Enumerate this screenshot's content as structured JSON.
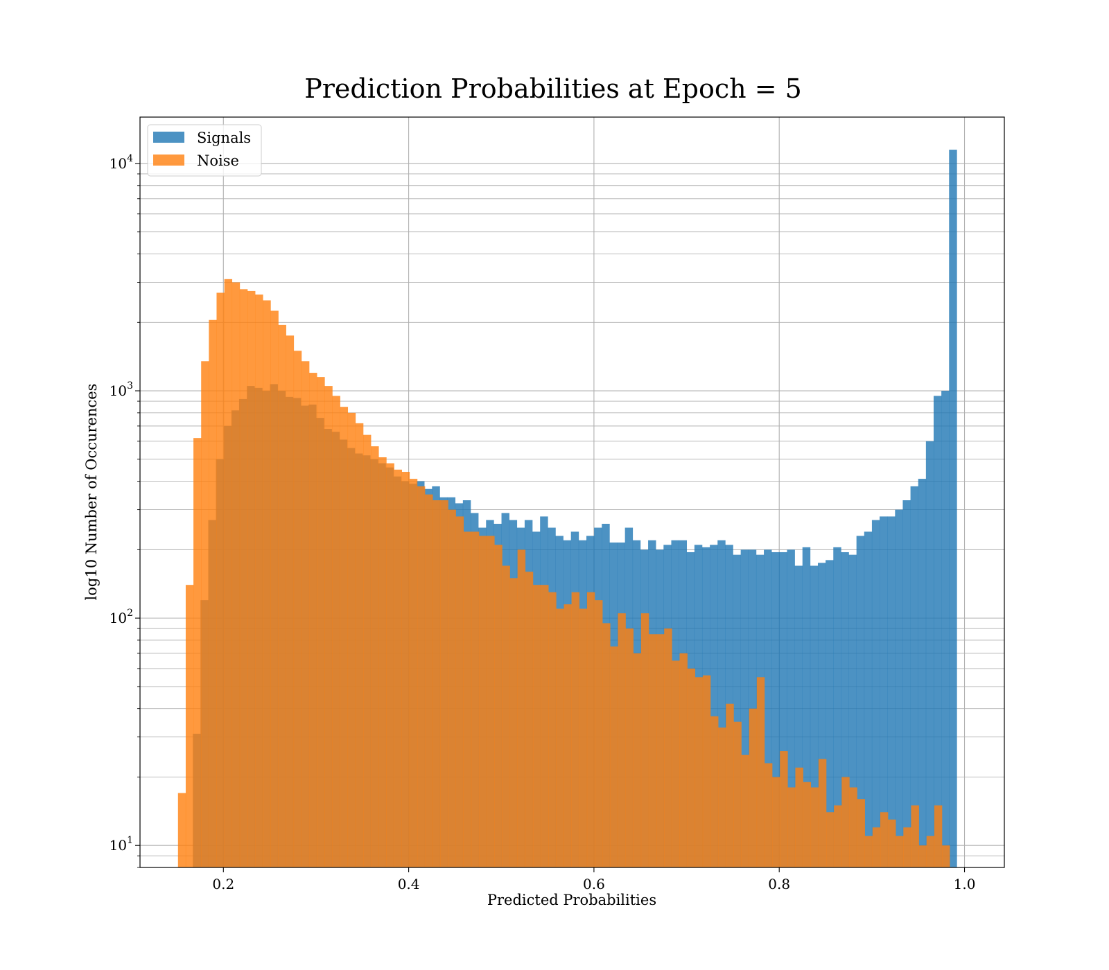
{
  "chart_data": {
    "type": "bar",
    "title": "Prediction Probabilities at Epoch = 5",
    "xlabel": "Predicted Probabilities",
    "ylabel": "log10 Number of Occurences",
    "xlim": [
      0.11,
      1.043
    ],
    "ylim": [
      8,
      16000
    ],
    "yscale": "log",
    "grid": true,
    "legend_position": "upper-left",
    "xticks": [
      "0.2",
      "0.4",
      "0.6",
      "0.8",
      "1.0"
    ],
    "yticks": [
      {
        "base": "10",
        "exp": "1",
        "value": 10
      },
      {
        "base": "10",
        "exp": "2",
        "value": 100
      },
      {
        "base": "10",
        "exp": "3",
        "value": 1000
      },
      {
        "base": "10",
        "exp": "4",
        "value": 10000
      }
    ],
    "series": [
      {
        "name": "Signals",
        "color": "#1f77b4",
        "bin_start": 0.167,
        "bin_width": 0.00833,
        "values": [
          31,
          120,
          270,
          500,
          700,
          820,
          920,
          1050,
          1030,
          1000,
          1070,
          1000,
          940,
          930,
          860,
          870,
          760,
          680,
          660,
          610,
          560,
          530,
          520,
          500,
          480,
          460,
          420,
          400,
          390,
          400,
          370,
          380,
          340,
          340,
          320,
          330,
          290,
          250,
          270,
          260,
          290,
          270,
          250,
          270,
          240,
          280,
          250,
          230,
          220,
          240,
          220,
          230,
          250,
          260,
          215,
          215,
          250,
          220,
          200,
          220,
          200,
          210,
          220,
          220,
          195,
          210,
          205,
          210,
          220,
          210,
          190,
          200,
          200,
          190,
          200,
          195,
          195,
          200,
          170,
          205,
          170,
          175,
          180,
          205,
          195,
          190,
          230,
          240,
          270,
          280,
          280,
          300,
          330,
          380,
          410,
          600,
          950,
          1000,
          11500
        ]
      },
      {
        "name": "Noise",
        "color": "#ff7f0e",
        "bin_start": 0.151,
        "bin_width": 0.00833,
        "values": [
          17,
          140,
          620,
          1350,
          2050,
          2700,
          3100,
          3000,
          2800,
          2750,
          2650,
          2500,
          2250,
          1950,
          1750,
          1500,
          1350,
          1200,
          1150,
          1050,
          950,
          850,
          800,
          720,
          640,
          570,
          510,
          480,
          450,
          440,
          410,
          380,
          350,
          330,
          330,
          300,
          280,
          240,
          240,
          230,
          230,
          210,
          170,
          150,
          200,
          160,
          140,
          140,
          130,
          110,
          115,
          130,
          110,
          130,
          120,
          95,
          75,
          105,
          90,
          70,
          105,
          85,
          85,
          90,
          65,
          70,
          60,
          55,
          56,
          37,
          33,
          42,
          35,
          25,
          40,
          55,
          23,
          20,
          26,
          18,
          22,
          19,
          18,
          24,
          14,
          15,
          20,
          18,
          16,
          11,
          12,
          14,
          13,
          11,
          12,
          15,
          10,
          11,
          15,
          10
        ]
      }
    ]
  }
}
